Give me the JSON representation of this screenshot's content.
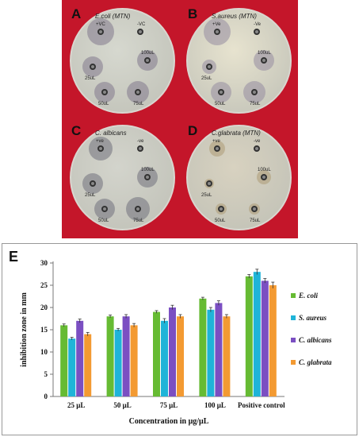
{
  "plates": [
    {
      "letter": "A",
      "label": "E.coli (MTN)",
      "wells": [
        "+VC",
        "-VC",
        "25uL",
        "50uL",
        "75uL",
        "100uL"
      ]
    },
    {
      "letter": "B",
      "label": "S.aureus (MTN)",
      "wells": [
        "+Ve",
        "-Ve",
        "25uL",
        "50uL",
        "75uL",
        "100uL"
      ]
    },
    {
      "letter": "C",
      "label": "C. albicans",
      "wells": [
        "+ve",
        "-ve",
        "25uL",
        "50uL",
        "75uL",
        "100uL"
      ]
    },
    {
      "letter": "D",
      "label": "C.glabrata (MTN)",
      "wells": [
        "+ve",
        "-ve",
        "25uL",
        "50uL",
        "75uL",
        "100uL"
      ]
    }
  ],
  "colors": {
    "E. coli": "#66bb33",
    "S. aureus": "#1fb4d8",
    "C. albicans": "#7b4fc2",
    "C. glabrata": "#f39a32"
  },
  "chart_data": {
    "type": "bar",
    "panel_letter": "E",
    "categories": [
      "25 μL",
      "50 μL",
      "75 μL",
      "100 μL",
      "Positive control"
    ],
    "series": [
      {
        "name": "E. coli",
        "values": [
          16,
          18,
          19,
          22,
          27
        ],
        "errors": [
          0.3,
          0.3,
          0.3,
          0.3,
          0.4
        ]
      },
      {
        "name": "S. aureus",
        "values": [
          13,
          15,
          17,
          19.5,
          28
        ],
        "errors": [
          0.3,
          0.3,
          0.5,
          0.5,
          0.6
        ]
      },
      {
        "name": "C. albicans",
        "values": [
          17,
          18,
          20,
          21,
          26
        ],
        "errors": [
          0.4,
          0.4,
          0.5,
          0.5,
          0.5
        ]
      },
      {
        "name": "C. glabrata",
        "values": [
          14,
          16,
          18,
          18,
          25
        ],
        "errors": [
          0.4,
          0.4,
          0.4,
          0.4,
          0.7
        ]
      }
    ],
    "xlabel": "Concentration  in  μg/μL",
    "ylabel": "inhibition zone in mm",
    "ylim": [
      0,
      30
    ],
    "yticks": [
      0,
      5,
      10,
      15,
      20,
      25,
      30
    ],
    "legend_position": "right",
    "grid": false
  }
}
